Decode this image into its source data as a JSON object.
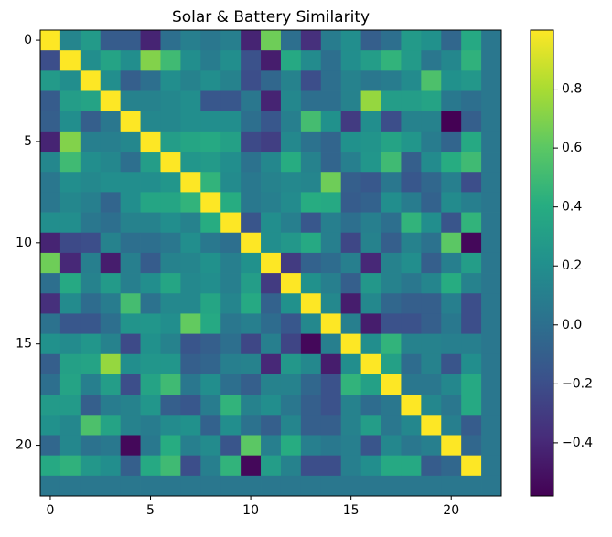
{
  "chart_data": {
    "type": "heatmap",
    "title": "Solar & Battery Similarity",
    "xlabel": "",
    "ylabel": "",
    "n": 23,
    "x_ticks": [
      0,
      5,
      10,
      15,
      20
    ],
    "y_ticks": [
      0,
      5,
      10,
      15,
      20
    ],
    "x_tick_labels": [
      "0",
      "5",
      "10",
      "15",
      "20"
    ],
    "y_tick_labels": [
      "0",
      "5",
      "10",
      "15",
      "20"
    ],
    "colorbar": {
      "min": -0.58,
      "max": 1.0,
      "ticks": [
        -0.4,
        -0.2,
        0.0,
        0.2,
        0.4,
        0.6,
        0.8
      ],
      "tick_labels": [
        "−0.4",
        "−0.2",
        "0.0",
        "0.2",
        "0.4",
        "0.6",
        "0.8"
      ]
    },
    "colormap": "viridis",
    "matrix": [
      [
        1.0,
        0.14,
        0.28,
        -0.12,
        -0.12,
        -0.42,
        0.0,
        0.1,
        0.05,
        0.1,
        -0.42,
        0.65,
        0.0,
        -0.36,
        0.08,
        0.2,
        -0.1,
        0.0,
        0.28,
        0.22,
        -0.05,
        0.38,
        0.05
      ],
      [
        -0.2,
        1.0,
        0.2,
        0.34,
        0.2,
        0.7,
        0.5,
        0.2,
        0.08,
        0.2,
        -0.18,
        -0.45,
        0.38,
        0.18,
        0.0,
        0.2,
        0.3,
        0.45,
        0.28,
        0.05,
        0.15,
        0.44,
        0.05
      ],
      [
        0.28,
        0.2,
        1.0,
        0.2,
        -0.1,
        0.0,
        0.2,
        0.12,
        0.2,
        0.12,
        -0.2,
        -0.05,
        0.12,
        -0.2,
        0.0,
        0.12,
        0.05,
        0.08,
        0.18,
        0.55,
        0.22,
        0.26,
        0.05
      ],
      [
        -0.12,
        0.3,
        0.34,
        1.0,
        0.12,
        0.12,
        0.15,
        0.2,
        -0.15,
        -0.15,
        0.05,
        -0.42,
        0.15,
        0.0,
        0.0,
        0.12,
        0.75,
        0.3,
        0.3,
        0.34,
        0.06,
        0.0,
        0.05
      ],
      [
        -0.1,
        0.2,
        -0.1,
        0.05,
        1.0,
        0.15,
        0.15,
        0.2,
        0.2,
        0.2,
        0.0,
        -0.15,
        0.1,
        0.52,
        0.22,
        -0.3,
        0.2,
        -0.2,
        0.12,
        0.12,
        -0.58,
        -0.1,
        0.05
      ],
      [
        -0.42,
        0.7,
        0.1,
        0.1,
        0.15,
        1.0,
        0.3,
        0.35,
        0.38,
        0.32,
        -0.22,
        -0.28,
        0.16,
        0.02,
        -0.06,
        0.22,
        0.24,
        0.34,
        0.25,
        0.08,
        -0.06,
        0.38,
        0.05
      ],
      [
        0.15,
        0.5,
        0.2,
        0.15,
        0.0,
        0.3,
        1.0,
        0.25,
        0.28,
        0.2,
        0.02,
        0.15,
        0.4,
        0.12,
        -0.06,
        0.1,
        0.25,
        0.5,
        -0.1,
        0.18,
        0.4,
        0.5,
        0.05
      ],
      [
        0.05,
        0.2,
        0.16,
        0.2,
        0.2,
        0.2,
        0.25,
        1.0,
        0.45,
        0.18,
        0.06,
        0.12,
        0.16,
        0.14,
        0.65,
        -0.1,
        -0.14,
        0.05,
        -0.15,
        -0.05,
        0.1,
        -0.2,
        0.05
      ],
      [
        0.05,
        0.15,
        0.1,
        -0.06,
        0.2,
        0.35,
        0.35,
        0.45,
        1.0,
        0.4,
        0.06,
        0.1,
        0.18,
        0.4,
        0.38,
        -0.12,
        -0.08,
        0.2,
        0.08,
        -0.08,
        0.18,
        0.1,
        0.05
      ],
      [
        0.2,
        0.2,
        0.05,
        0.0,
        0.12,
        0.12,
        0.2,
        0.12,
        0.4,
        1.0,
        -0.16,
        0.2,
        0.1,
        -0.15,
        0.1,
        0.0,
        0.1,
        0.0,
        0.45,
        0.2,
        -0.16,
        0.45,
        0.05
      ],
      [
        -0.42,
        -0.22,
        -0.2,
        0.12,
        0.0,
        0.0,
        0.05,
        0.2,
        0.06,
        0.0,
        1.0,
        0.2,
        0.26,
        0.38,
        0.1,
        -0.24,
        0.12,
        -0.1,
        0.12,
        0.02,
        0.6,
        -0.55,
        0.05
      ],
      [
        0.65,
        -0.4,
        0.1,
        -0.45,
        0.1,
        -0.12,
        0.12,
        0.14,
        0.22,
        0.1,
        0.22,
        1.0,
        -0.3,
        -0.08,
        -0.02,
        0.1,
        -0.4,
        0.12,
        0.2,
        -0.1,
        0.1,
        0.3,
        0.05
      ],
      [
        0.0,
        0.38,
        0.12,
        0.28,
        0.1,
        0.2,
        0.35,
        0.16,
        0.2,
        0.1,
        0.3,
        -0.3,
        1.0,
        0.22,
        0.1,
        -0.1,
        0.26,
        0.12,
        0.05,
        0.14,
        0.4,
        0.12,
        0.05
      ],
      [
        -0.36,
        0.18,
        -0.02,
        0.08,
        0.52,
        0.02,
        0.16,
        0.16,
        0.35,
        0.14,
        0.38,
        -0.08,
        0.22,
        1.0,
        0.16,
        -0.45,
        0.16,
        -0.05,
        -0.1,
        -0.1,
        0.1,
        -0.2,
        0.05
      ],
      [
        0.02,
        -0.15,
        -0.15,
        0.0,
        0.24,
        0.25,
        0.2,
        0.62,
        0.38,
        0.05,
        0.1,
        -0.02,
        -0.15,
        0.16,
        1.0,
        0.1,
        -0.45,
        -0.18,
        -0.18,
        -0.1,
        0.06,
        -0.2,
        0.05
      ],
      [
        0.22,
        0.18,
        0.25,
        0.12,
        -0.22,
        0.22,
        0.12,
        -0.16,
        -0.1,
        0.0,
        -0.24,
        0.1,
        -0.25,
        -0.55,
        0.1,
        1.0,
        0.2,
        0.45,
        0.12,
        0.12,
        0.1,
        0.1,
        0.05
      ],
      [
        -0.1,
        0.32,
        0.34,
        0.75,
        0.2,
        0.25,
        0.25,
        -0.1,
        -0.06,
        0.1,
        0.12,
        -0.4,
        0.26,
        0.16,
        -0.45,
        0.2,
        1.0,
        0.32,
        -0.02,
        0.12,
        -0.16,
        0.2,
        0.05
      ],
      [
        0.0,
        0.34,
        0.1,
        0.3,
        -0.2,
        0.34,
        0.5,
        0.05,
        0.2,
        0.0,
        -0.1,
        0.12,
        0.12,
        -0.05,
        -0.18,
        0.45,
        0.32,
        1.0,
        0.05,
        0.05,
        0.15,
        0.38,
        0.05
      ],
      [
        0.28,
        0.28,
        -0.1,
        0.08,
        0.12,
        0.25,
        -0.1,
        -0.15,
        0.08,
        0.45,
        0.12,
        0.2,
        0.05,
        -0.1,
        -0.18,
        0.12,
        -0.02,
        0.05,
        1.0,
        0.15,
        0.05,
        0.38,
        0.05
      ],
      [
        0.22,
        0.15,
        0.55,
        0.34,
        0.12,
        0.08,
        0.18,
        0.22,
        -0.08,
        0.2,
        0.02,
        -0.1,
        0.14,
        -0.1,
        -0.1,
        0.12,
        0.3,
        0.05,
        0.15,
        1.0,
        0.1,
        -0.12,
        0.05
      ],
      [
        -0.05,
        0.15,
        0.02,
        0.06,
        -0.55,
        0.06,
        0.4,
        0.1,
        0.18,
        -0.16,
        0.6,
        0.1,
        0.4,
        0.1,
        0.06,
        0.1,
        -0.16,
        0.15,
        0.05,
        0.1,
        1.0,
        -0.05,
        0.05
      ],
      [
        0.38,
        0.44,
        0.26,
        0.2,
        -0.1,
        0.38,
        0.5,
        -0.2,
        0.1,
        0.45,
        -0.55,
        0.3,
        0.12,
        -0.2,
        -0.2,
        0.1,
        0.2,
        0.38,
        0.38,
        -0.12,
        -0.05,
        1.0,
        0.05
      ],
      [
        0.05,
        0.05,
        0.05,
        0.05,
        0.05,
        0.05,
        0.05,
        0.05,
        0.05,
        0.05,
        0.05,
        0.05,
        0.05,
        0.05,
        0.05,
        0.05,
        0.05,
        0.05,
        0.05,
        0.05,
        0.05,
        0.05,
        0.05
      ]
    ]
  }
}
